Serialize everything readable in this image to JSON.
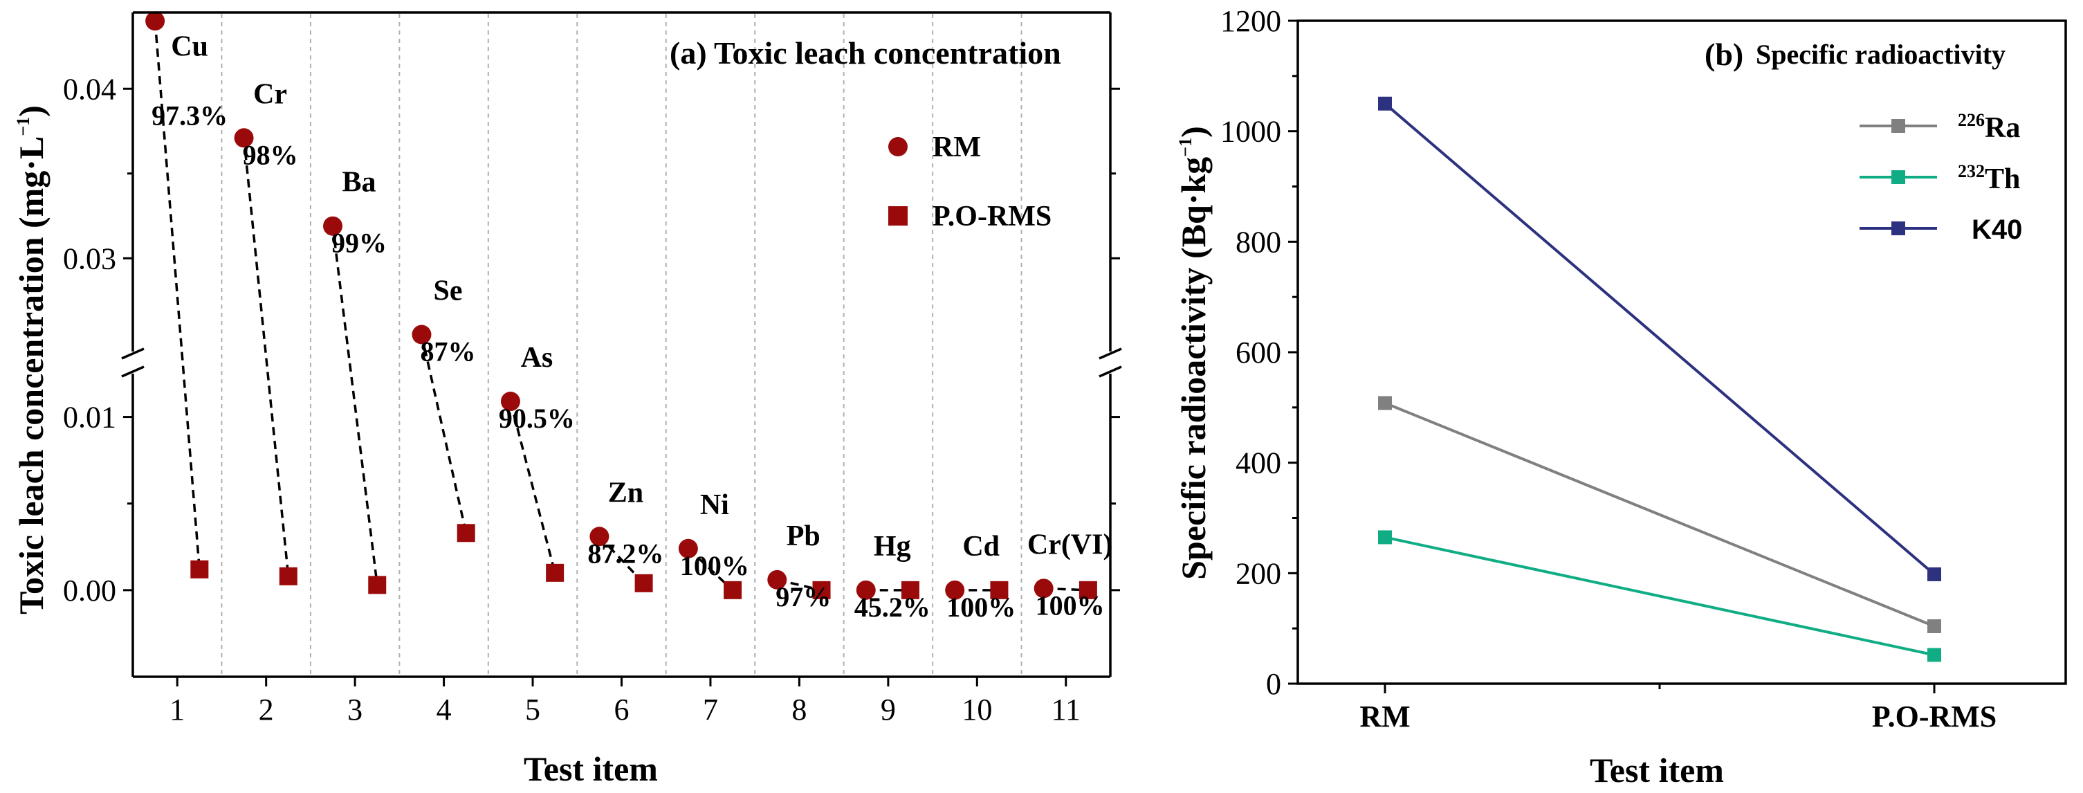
{
  "chart_data": [
    {
      "type": "scatter",
      "panel": "(a)",
      "title": "Toxic leach concentration",
      "xlabel": "Test item",
      "ylabel": "Toxic leach concentration (mg·L",
      "ylabel_sup": "−1",
      "ylabel_close": ")",
      "x_ticks": [
        "1",
        "2",
        "3",
        "4",
        "5",
        "6",
        "7",
        "8",
        "9",
        "10",
        "11"
      ],
      "y_ticks_lower": [
        "0.00",
        "0.01"
      ],
      "y_ticks_upper": [
        "0.03",
        "0.04"
      ],
      "ylim_lower": [
        -0.005,
        0.0125
      ],
      "ylim_upper": [
        0.0245,
        0.0445
      ],
      "axis_break": true,
      "grid": "vertical dashed separators between items",
      "legend": [
        {
          "name": "RM",
          "marker": "circle"
        },
        {
          "name": "P.O-RMS",
          "marker": "square"
        }
      ],
      "marker_color": "#9b0a0a",
      "items": [
        {
          "element": "Cu",
          "rm": 0.044,
          "porms": 0.0012,
          "reduction": "97.3%"
        },
        {
          "element": "Cr",
          "rm": 0.0371,
          "porms": 0.0008,
          "reduction": "98%"
        },
        {
          "element": "Ba",
          "rm": 0.0319,
          "porms": 0.0003,
          "reduction": "99%"
        },
        {
          "element": "Se",
          "rm": 0.0255,
          "porms": 0.0033,
          "reduction": "87%"
        },
        {
          "element": "As",
          "rm": 0.0109,
          "porms": 0.001,
          "reduction": "90.5%"
        },
        {
          "element": "Zn",
          "rm": 0.0031,
          "porms": 0.0004,
          "reduction": "87.2%"
        },
        {
          "element": "Ni",
          "rm": 0.0024,
          "porms": 0.0,
          "reduction": "100%"
        },
        {
          "element": "Pb",
          "rm": 0.0006,
          "porms": 0.0,
          "reduction": "97%"
        },
        {
          "element": "Hg",
          "rm": 0.0,
          "porms": 0.0,
          "reduction": "45.2%"
        },
        {
          "element": "Cd",
          "rm": 0.0,
          "porms": 0.0,
          "reduction": "100%"
        },
        {
          "element": "Cr(VI)",
          "rm": 0.0001,
          "porms": 0.0,
          "reduction": "100%"
        }
      ]
    },
    {
      "type": "line",
      "panel": "(b)",
      "title": "Specific radioactivity",
      "xlabel": "Test item",
      "ylabel": "Specific radioactivity (Bq·kg",
      "ylabel_sup": "−1",
      "ylabel_close": ")",
      "categories": [
        "RM",
        "P.O-RMS"
      ],
      "y_ticks": [
        "0",
        "200",
        "400",
        "600",
        "800",
        "1000",
        "1200"
      ],
      "ylim": [
        0,
        1200
      ],
      "legend_position": "top-right",
      "series": [
        {
          "name": "Ra",
          "iso": "226",
          "color": "#808080",
          "values": [
            508,
            104
          ]
        },
        {
          "name": "Th",
          "iso": "232",
          "color": "#10ad84",
          "values": [
            265,
            52
          ]
        },
        {
          "name": "K40",
          "iso": "",
          "color": "#2d3280",
          "values": [
            1050,
            198
          ]
        }
      ]
    }
  ]
}
